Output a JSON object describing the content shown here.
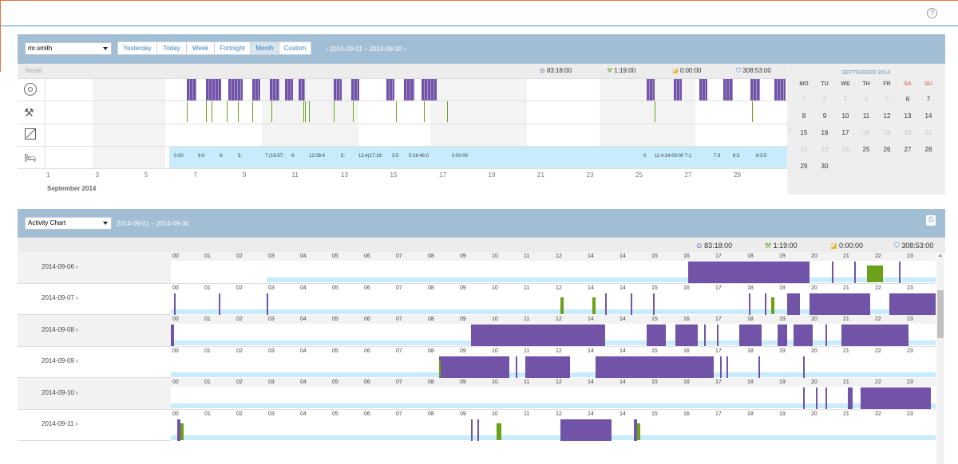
{
  "user_select": "mr.smith",
  "range_buttons": [
    "Yesterday",
    "Today",
    "Week",
    "Fortnight",
    "Month",
    "Custom"
  ],
  "active_range": "Month",
  "date_range": "2014-09-01  –  2014-09-30",
  "reset_label": "Reset",
  "totals": {
    "driving": "83:18:00",
    "work": "1:19:00",
    "availability": "0:00:00",
    "rest": "308:53:00"
  },
  "month_label": "September 2014",
  "day_axis": [
    "1",
    "3",
    "5",
    "7",
    "9",
    "11",
    "13",
    "15",
    "17",
    "19",
    "21",
    "23",
    "25",
    "27",
    "29"
  ],
  "rest_labels": [
    "0:00",
    "9:0",
    "6:",
    "5:",
    "7:(16:57:",
    "6:",
    "12:08:4",
    "5:",
    "12:4(17:19:",
    "3:5",
    "5:18:46:0",
    "0:00:00",
    "0",
    "11:4:24:00:00 7:1",
    "7:3",
    "8:3",
    "8:3:5"
  ],
  "calendar": {
    "title": "SEPTEMBER 2014",
    "headers": [
      "MO",
      "TU",
      "WE",
      "TH",
      "FR",
      "SA",
      "SU"
    ],
    "rows": [
      [
        [
          "1",
          true
        ],
        [
          "2",
          true
        ],
        [
          "3",
          true
        ],
        [
          "4",
          true
        ],
        [
          "5",
          true
        ],
        [
          "6",
          false
        ],
        [
          "7",
          false
        ]
      ],
      [
        [
          "8",
          false
        ],
        [
          "9",
          false
        ],
        [
          "10",
          false
        ],
        [
          "11",
          false
        ],
        [
          "12",
          false
        ],
        [
          "13",
          false
        ],
        [
          "14",
          false
        ]
      ],
      [
        [
          "15",
          false
        ],
        [
          "16",
          false
        ],
        [
          "17",
          false
        ],
        [
          "18",
          true
        ],
        [
          "19",
          true
        ],
        [
          "20",
          true
        ],
        [
          "21",
          true
        ]
      ],
      [
        [
          "22",
          true
        ],
        [
          "23",
          true
        ],
        [
          "24",
          true
        ],
        [
          "25",
          false
        ],
        [
          "26",
          false
        ],
        [
          "27",
          false
        ],
        [
          "28",
          false
        ]
      ],
      [
        [
          "29",
          false
        ],
        [
          "30",
          false
        ],
        [
          "",
          true
        ],
        [
          "",
          true
        ],
        [
          "",
          true
        ],
        [
          "",
          true
        ],
        [
          "",
          true
        ]
      ]
    ]
  },
  "activity": {
    "chart_select": "Activity Chart",
    "date_range": "2014-09-01  –  2014-09-30",
    "hours": [
      "00",
      "01",
      "02",
      "03",
      "04",
      "05",
      "06",
      "07",
      "08",
      "09",
      "10",
      "11",
      "12",
      "14",
      "14",
      "15",
      "16",
      "17",
      "18",
      "19",
      "20",
      "21",
      "22",
      "23"
    ],
    "rows": [
      {
        "date": "2014-09-06",
        "drive": [
          [
            16.2,
            20.0
          ],
          [
            20.7,
            20.75
          ],
          [
            21.4,
            21.45
          ],
          [
            22.8,
            22.85
          ],
          [
            23.95,
            24
          ]
        ],
        "work": [
          [
            21.8,
            22.3
          ]
        ],
        "rest": [
          [
            3.0,
            16.2
          ],
          [
            20.0,
            24
          ]
        ]
      },
      {
        "date": "2014-09-07",
        "drive": [
          [
            0.1,
            0.15
          ],
          [
            1.5,
            1.55
          ],
          [
            3.0,
            3.05
          ],
          [
            13.6,
            13.65
          ],
          [
            14.4,
            14.45
          ],
          [
            15.1,
            15.15
          ],
          [
            18.1,
            18.15
          ],
          [
            18.6,
            18.65
          ],
          [
            19.3,
            19.7
          ],
          [
            20.0,
            21.9
          ],
          [
            22.5,
            24
          ]
        ],
        "work": [
          [
            12.2,
            12.3
          ],
          [
            13.2,
            13.3
          ],
          [
            18.8,
            18.9
          ]
        ],
        "rest": [
          [
            0,
            24
          ]
        ]
      },
      {
        "date": "2014-09-08",
        "drive": [
          [
            0,
            0.1
          ],
          [
            9.4,
            13.6
          ],
          [
            14.9,
            15.5
          ],
          [
            15.8,
            16.5
          ],
          [
            16.7,
            16.75
          ],
          [
            17.1,
            17.15
          ],
          [
            17.8,
            18.5
          ],
          [
            19.0,
            19.3
          ],
          [
            19.5,
            20.1
          ],
          [
            20.5,
            20.55
          ],
          [
            21.0,
            23.1
          ]
        ],
        "work": [],
        "rest": [
          [
            0,
            24
          ]
        ]
      },
      {
        "date": "2014-09-09",
        "drive": [
          [
            8.4,
            10.6
          ],
          [
            10.8,
            10.85
          ],
          [
            11.1,
            12.5
          ],
          [
            13.3,
            17.0
          ],
          [
            17.2,
            17.25
          ],
          [
            17.4,
            17.45
          ],
          [
            18.4,
            18.45
          ],
          [
            19.8,
            19.85
          ]
        ],
        "work": [
          [
            8.4,
            8.45
          ]
        ],
        "rest": [
          [
            0,
            24
          ]
        ]
      },
      {
        "date": "2014-09-10",
        "drive": [
          [
            19.8,
            19.85
          ],
          [
            20.2,
            20.25
          ],
          [
            20.5,
            20.55
          ],
          [
            21.2,
            21.35
          ],
          [
            21.6,
            23.8
          ]
        ],
        "work": [],
        "rest": [
          [
            0,
            24
          ]
        ]
      },
      {
        "date": "2014-09-11",
        "drive": [
          [
            0.2,
            0.3
          ],
          [
            9.4,
            9.45
          ],
          [
            9.6,
            9.65
          ],
          [
            12.2,
            13.8
          ],
          [
            14.5,
            14.6
          ]
        ],
        "work": [
          [
            0.3,
            0.4
          ],
          [
            10.2,
            10.35
          ],
          [
            14.6,
            14.7
          ]
        ],
        "rest": [
          [
            0,
            24
          ]
        ]
      }
    ]
  },
  "colors": {
    "drive": "#7153a8",
    "work": "#6aa118",
    "rest": "#c8ecfb",
    "header": "#a2bed5",
    "accent": "#3a80c0"
  },
  "icons": [
    "steering-wheel-icon",
    "hammer-wrench-icon",
    "availability-icon",
    "bed-icon",
    "print-icon",
    "help-icon"
  ]
}
